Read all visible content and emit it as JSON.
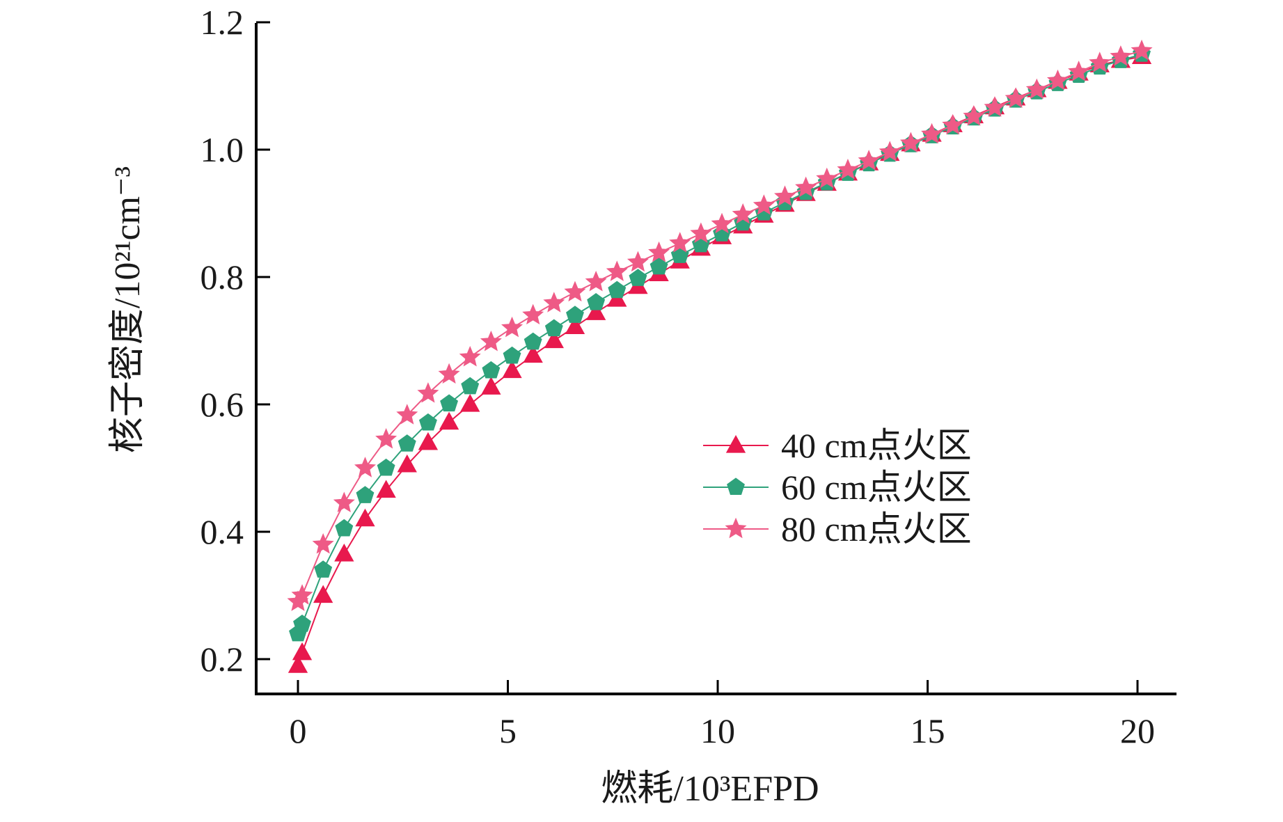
{
  "chart_data": {
    "type": "line",
    "xlabel": "燃耗/10³EFPD",
    "ylabel": "核子密度/10²¹cm⁻³",
    "xlim": [
      -1,
      21
    ],
    "ylim": [
      0.15,
      1.2
    ],
    "xticks": [
      0,
      5,
      10,
      15,
      20
    ],
    "yticks": [
      0.2,
      0.4,
      0.6,
      0.8,
      1.0,
      1.2
    ],
    "xtick_labels": [
      "0",
      "5",
      "10",
      "15",
      "20"
    ],
    "ytick_labels": [
      "0.2",
      "0.4",
      "0.6",
      "0.8",
      "1.0",
      "1.2"
    ],
    "grid": false,
    "legend_position": "center-right",
    "x": [
      0,
      0.1,
      0.6,
      1.1,
      1.6,
      2.1,
      2.6,
      3.1,
      3.6,
      4.1,
      4.6,
      5.1,
      5.6,
      6.1,
      6.6,
      7.1,
      7.6,
      8.1,
      8.6,
      9.1,
      9.6,
      10.1,
      10.6,
      11.1,
      11.6,
      12.1,
      12.6,
      13.1,
      13.6,
      14.1,
      14.6,
      15.1,
      15.6,
      16.1,
      16.6,
      17.1,
      17.6,
      18.1,
      18.6,
      19.1,
      19.6,
      20.1
    ],
    "series": [
      {
        "name": "40 cm点火区",
        "marker": "triangle",
        "color": "#e8194d",
        "values": [
          0.19,
          0.21,
          0.3,
          0.365,
          0.42,
          0.465,
          0.505,
          0.54,
          0.572,
          0.6,
          0.627,
          0.653,
          0.677,
          0.7,
          0.722,
          0.744,
          0.765,
          0.785,
          0.805,
          0.825,
          0.845,
          0.863,
          0.88,
          0.897,
          0.914,
          0.931,
          0.947,
          0.963,
          0.979,
          0.994,
          1.009,
          1.024,
          1.039,
          1.053,
          1.067,
          1.081,
          1.094,
          1.107,
          1.12,
          1.133,
          1.14,
          1.146
        ]
      },
      {
        "name": "60 cm点火区",
        "marker": "pentagon",
        "color": "#2ea27b",
        "values": [
          0.24,
          0.255,
          0.34,
          0.405,
          0.457,
          0.5,
          0.538,
          0.571,
          0.601,
          0.628,
          0.653,
          0.676,
          0.698,
          0.719,
          0.74,
          0.76,
          0.779,
          0.798,
          0.816,
          0.834,
          0.851,
          0.868,
          0.885,
          0.901,
          0.917,
          0.933,
          0.948,
          0.963,
          0.978,
          0.993,
          1.008,
          1.022,
          1.036,
          1.05,
          1.064,
          1.078,
          1.091,
          1.104,
          1.117,
          1.13,
          1.14,
          1.15
        ]
      },
      {
        "name": "80 cm点火区",
        "marker": "star",
        "color": "#ee5a86",
        "values": [
          0.29,
          0.3,
          0.38,
          0.445,
          0.5,
          0.545,
          0.583,
          0.617,
          0.647,
          0.674,
          0.698,
          0.72,
          0.74,
          0.759,
          0.776,
          0.792,
          0.808,
          0.823,
          0.838,
          0.853,
          0.868,
          0.883,
          0.898,
          0.912,
          0.926,
          0.94,
          0.954,
          0.968,
          0.982,
          0.996,
          1.01,
          1.024,
          1.038,
          1.052,
          1.066,
          1.08,
          1.094,
          1.108,
          1.122,
          1.136,
          1.146,
          1.155
        ]
      }
    ]
  }
}
